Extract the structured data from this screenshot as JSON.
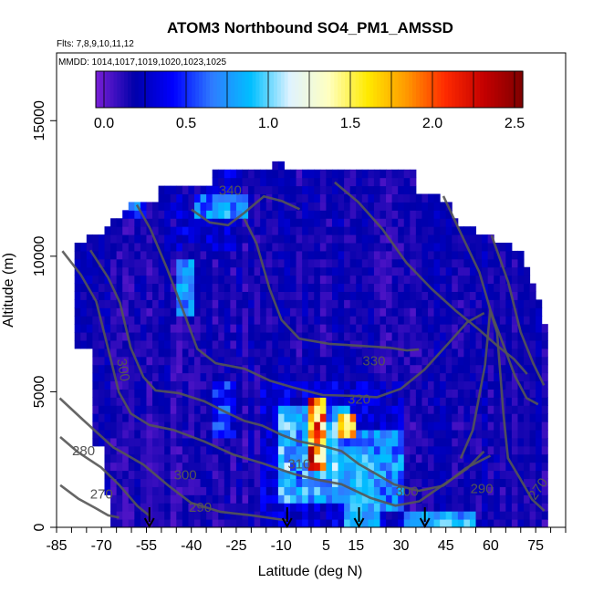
{
  "chart_data": {
    "type": "heatmap",
    "title": "ATOM3 Northbound SO4_PM1_AMSSD",
    "flights_text": "Flts: 7,8,9,10,11,12",
    "dates_text": "MMDD: 1014,1017,1019,1020,1023,1025",
    "xlabel": "Latitude (deg N)",
    "ylabel": "Altitude (m)",
    "xlim": [
      -85,
      85
    ],
    "ylim": [
      0,
      17500
    ],
    "x_ticks": [
      -85,
      -70,
      -55,
      -40,
      -25,
      -10,
      5,
      15,
      30,
      45,
      60,
      75
    ],
    "y_ticks": [
      0,
      5000,
      10000,
      15000
    ],
    "colorbar": {
      "min": -0.05,
      "max": 2.55,
      "ticks": [
        0.0,
        0.5,
        1.0,
        1.5,
        2.0,
        2.5
      ],
      "colors": [
        "#7a1fd6",
        "#0000aa",
        "#0000ff",
        "#2f7cff",
        "#00bfff",
        "#dff3ff",
        "#ffffc0",
        "#ffea00",
        "#ff9900",
        "#ff2a00",
        "#c40000",
        "#7f0000"
      ]
    },
    "ascent_markers_lat": [
      -54,
      -8,
      16,
      38
    ],
    "contours": [
      {
        "label": "270",
        "level": 270
      },
      {
        "label": "280",
        "level": 280
      },
      {
        "label": "290",
        "level": 290
      },
      {
        "label": "300",
        "level": 300
      },
      {
        "label": "310",
        "level": 310
      },
      {
        "label": "320",
        "level": 320
      },
      {
        "label": "330",
        "level": 330
      },
      {
        "label": "340",
        "level": 340
      }
    ]
  }
}
